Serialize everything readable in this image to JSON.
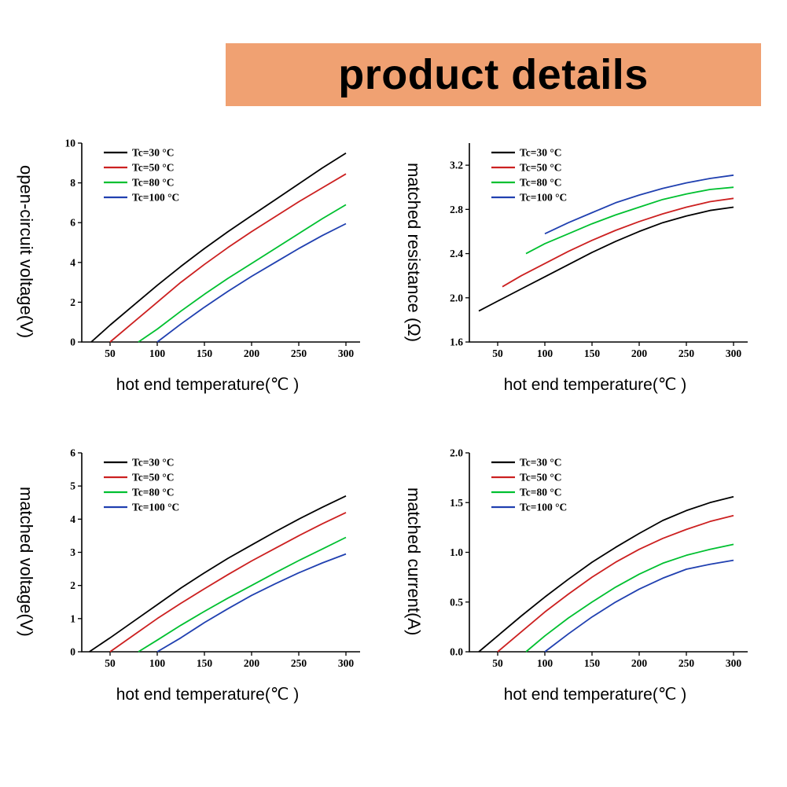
{
  "banner": {
    "title": "product details",
    "background": "#f0a172"
  },
  "charts": [
    {
      "id": "open-circuit-voltage",
      "ylabel": "open-circuit voltage(V)",
      "xlabel": "hot end temperature(℃ )",
      "xlim": [
        20,
        315
      ],
      "ylim": [
        0,
        10
      ],
      "xticks": [
        50,
        100,
        150,
        200,
        250,
        300
      ],
      "yticks": [
        0,
        2,
        4,
        6,
        8,
        10
      ],
      "ytick_labels": [
        "0",
        "2",
        "4",
        "6",
        "8",
        "10"
      ],
      "type": "line",
      "legend_position": "top-left",
      "series": [
        {
          "name": "Tc=30 °C",
          "color": "#000000",
          "points": [
            [
              30,
              0
            ],
            [
              50,
              0.85
            ],
            [
              75,
              1.85
            ],
            [
              100,
              2.85
            ],
            [
              125,
              3.8
            ],
            [
              150,
              4.7
            ],
            [
              175,
              5.55
            ],
            [
              200,
              6.35
            ],
            [
              225,
              7.15
            ],
            [
              250,
              7.95
            ],
            [
              275,
              8.75
            ],
            [
              300,
              9.5
            ]
          ]
        },
        {
          "name": "Tc=50 °C",
          "color": "#cc2020",
          "points": [
            [
              50,
              0
            ],
            [
              75,
              1.0
            ],
            [
              100,
              2.0
            ],
            [
              125,
              3.0
            ],
            [
              150,
              3.9
            ],
            [
              175,
              4.75
            ],
            [
              200,
              5.55
            ],
            [
              225,
              6.3
            ],
            [
              250,
              7.05
            ],
            [
              275,
              7.75
            ],
            [
              300,
              8.45
            ]
          ]
        },
        {
          "name": "Tc=80 °C",
          "color": "#00c030",
          "points": [
            [
              80,
              0
            ],
            [
              100,
              0.65
            ],
            [
              125,
              1.55
            ],
            [
              150,
              2.4
            ],
            [
              175,
              3.2
            ],
            [
              200,
              3.95
            ],
            [
              225,
              4.7
            ],
            [
              250,
              5.45
            ],
            [
              275,
              6.2
            ],
            [
              300,
              6.9
            ]
          ]
        },
        {
          "name": "Tc=100 °C",
          "color": "#2040b0",
          "points": [
            [
              100,
              0
            ],
            [
              125,
              0.9
            ],
            [
              150,
              1.75
            ],
            [
              175,
              2.55
            ],
            [
              200,
              3.3
            ],
            [
              225,
              4.0
            ],
            [
              250,
              4.7
            ],
            [
              275,
              5.35
            ],
            [
              300,
              5.95
            ]
          ]
        }
      ]
    },
    {
      "id": "matched-resistance",
      "ylabel": "matched resistance (Ω)",
      "xlabel": "hot end temperature(℃ )",
      "xlim": [
        20,
        315
      ],
      "ylim": [
        1.6,
        3.4
      ],
      "xticks": [
        50,
        100,
        150,
        200,
        250,
        300
      ],
      "yticks": [
        1.6,
        2.0,
        2.4,
        2.8,
        3.2
      ],
      "ytick_labels": [
        "1.6",
        "2.0",
        "2.4",
        "2.8",
        "3.2"
      ],
      "type": "line",
      "legend_position": "top-left",
      "series": [
        {
          "name": "Tc=30 °C",
          "color": "#000000",
          "points": [
            [
              30,
              1.88
            ],
            [
              50,
              1.97
            ],
            [
              75,
              2.08
            ],
            [
              100,
              2.19
            ],
            [
              125,
              2.3
            ],
            [
              150,
              2.41
            ],
            [
              175,
              2.51
            ],
            [
              200,
              2.6
            ],
            [
              225,
              2.68
            ],
            [
              250,
              2.74
            ],
            [
              275,
              2.79
            ],
            [
              300,
              2.82
            ]
          ]
        },
        {
          "name": "Tc=50 °C",
          "color": "#cc2020",
          "points": [
            [
              55,
              2.1
            ],
            [
              75,
              2.2
            ],
            [
              100,
              2.31
            ],
            [
              125,
              2.42
            ],
            [
              150,
              2.52
            ],
            [
              175,
              2.61
            ],
            [
              200,
              2.69
            ],
            [
              225,
              2.76
            ],
            [
              250,
              2.82
            ],
            [
              275,
              2.87
            ],
            [
              300,
              2.9
            ]
          ]
        },
        {
          "name": "Tc=80 °C",
          "color": "#00c030",
          "points": [
            [
              80,
              2.4
            ],
            [
              100,
              2.49
            ],
            [
              125,
              2.58
            ],
            [
              150,
              2.67
            ],
            [
              175,
              2.75
            ],
            [
              200,
              2.82
            ],
            [
              225,
              2.89
            ],
            [
              250,
              2.94
            ],
            [
              275,
              2.98
            ],
            [
              300,
              3.0
            ]
          ]
        },
        {
          "name": "Tc=100 °C",
          "color": "#2040b0",
          "points": [
            [
              100,
              2.58
            ],
            [
              125,
              2.68
            ],
            [
              150,
              2.77
            ],
            [
              175,
              2.86
            ],
            [
              200,
              2.93
            ],
            [
              225,
              2.99
            ],
            [
              250,
              3.04
            ],
            [
              275,
              3.08
            ],
            [
              300,
              3.11
            ]
          ]
        }
      ]
    },
    {
      "id": "matched-voltage",
      "ylabel": "matched voltage(V)",
      "xlabel": "hot end temperature(℃ )",
      "xlim": [
        20,
        315
      ],
      "ylim": [
        0,
        6
      ],
      "xticks": [
        50,
        100,
        150,
        200,
        250,
        300
      ],
      "yticks": [
        0,
        1,
        2,
        3,
        4,
        5,
        6
      ],
      "ytick_labels": [
        "0",
        "1",
        "2",
        "3",
        "4",
        "5",
        "6"
      ],
      "type": "line",
      "legend_position": "top-left",
      "series": [
        {
          "name": "Tc=30 °C",
          "color": "#000000",
          "points": [
            [
              28,
              0
            ],
            [
              50,
              0.42
            ],
            [
              75,
              0.92
            ],
            [
              100,
              1.42
            ],
            [
              125,
              1.92
            ],
            [
              150,
              2.38
            ],
            [
              175,
              2.82
            ],
            [
              200,
              3.22
            ],
            [
              225,
              3.62
            ],
            [
              250,
              4.0
            ],
            [
              275,
              4.36
            ],
            [
              300,
              4.7
            ]
          ]
        },
        {
          "name": "Tc=50 °C",
          "color": "#cc2020",
          "points": [
            [
              50,
              0
            ],
            [
              75,
              0.5
            ],
            [
              100,
              1.0
            ],
            [
              125,
              1.46
            ],
            [
              150,
              1.9
            ],
            [
              175,
              2.33
            ],
            [
              200,
              2.74
            ],
            [
              225,
              3.12
            ],
            [
              250,
              3.5
            ],
            [
              275,
              3.86
            ],
            [
              300,
              4.2
            ]
          ]
        },
        {
          "name": "Tc=80 °C",
          "color": "#00c030",
          "points": [
            [
              80,
              0
            ],
            [
              100,
              0.35
            ],
            [
              125,
              0.8
            ],
            [
              150,
              1.22
            ],
            [
              175,
              1.62
            ],
            [
              200,
              2.0
            ],
            [
              225,
              2.38
            ],
            [
              250,
              2.75
            ],
            [
              275,
              3.1
            ],
            [
              300,
              3.45
            ]
          ]
        },
        {
          "name": "Tc=100 °C",
          "color": "#2040b0",
          "points": [
            [
              100,
              0
            ],
            [
              125,
              0.42
            ],
            [
              150,
              0.88
            ],
            [
              175,
              1.3
            ],
            [
              200,
              1.7
            ],
            [
              225,
              2.05
            ],
            [
              250,
              2.38
            ],
            [
              275,
              2.68
            ],
            [
              300,
              2.95
            ]
          ]
        }
      ]
    },
    {
      "id": "matched-current",
      "ylabel": "matched current(A)",
      "xlabel": "hot end temperature(℃ )",
      "xlim": [
        20,
        315
      ],
      "ylim": [
        0,
        2
      ],
      "xticks": [
        50,
        100,
        150,
        200,
        250,
        300
      ],
      "yticks": [
        0,
        0.5,
        1.0,
        1.5,
        2.0
      ],
      "ytick_labels": [
        "0.0",
        "0.5",
        "1.0",
        "1.5",
        "2.0"
      ],
      "type": "line",
      "legend_position": "top-left",
      "series": [
        {
          "name": "Tc=30 °C",
          "color": "#000000",
          "points": [
            [
              30,
              0
            ],
            [
              50,
              0.16
            ],
            [
              75,
              0.36
            ],
            [
              100,
              0.55
            ],
            [
              125,
              0.73
            ],
            [
              150,
              0.9
            ],
            [
              175,
              1.05
            ],
            [
              200,
              1.19
            ],
            [
              225,
              1.32
            ],
            [
              250,
              1.42
            ],
            [
              275,
              1.5
            ],
            [
              300,
              1.56
            ]
          ]
        },
        {
          "name": "Tc=50 °C",
          "color": "#cc2020",
          "points": [
            [
              50,
              0
            ],
            [
              75,
              0.2
            ],
            [
              100,
              0.4
            ],
            [
              125,
              0.58
            ],
            [
              150,
              0.75
            ],
            [
              175,
              0.9
            ],
            [
              200,
              1.03
            ],
            [
              225,
              1.14
            ],
            [
              250,
              1.23
            ],
            [
              275,
              1.31
            ],
            [
              300,
              1.37
            ]
          ]
        },
        {
          "name": "Tc=80 °C",
          "color": "#00c030",
          "points": [
            [
              80,
              0
            ],
            [
              100,
              0.16
            ],
            [
              125,
              0.34
            ],
            [
              150,
              0.5
            ],
            [
              175,
              0.65
            ],
            [
              200,
              0.78
            ],
            [
              225,
              0.89
            ],
            [
              250,
              0.97
            ],
            [
              275,
              1.03
            ],
            [
              300,
              1.08
            ]
          ]
        },
        {
          "name": "Tc=100 °C",
          "color": "#2040b0",
          "points": [
            [
              100,
              0
            ],
            [
              125,
              0.18
            ],
            [
              150,
              0.35
            ],
            [
              175,
              0.5
            ],
            [
              200,
              0.63
            ],
            [
              225,
              0.74
            ],
            [
              250,
              0.83
            ],
            [
              275,
              0.88
            ],
            [
              300,
              0.92
            ]
          ]
        }
      ]
    }
  ]
}
